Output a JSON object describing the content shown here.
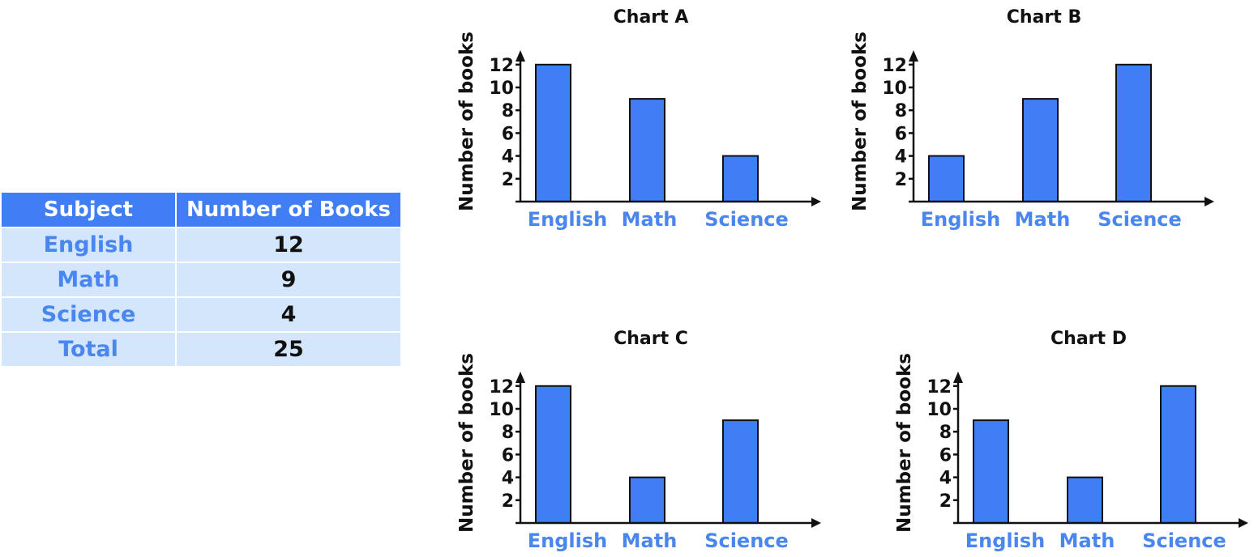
{
  "table": {
    "headers": [
      "Subject",
      "Number of Books"
    ],
    "rows": [
      [
        "English",
        "12"
      ],
      [
        "Math",
        "9"
      ],
      [
        "Science",
        "4"
      ],
      [
        "Total",
        "25"
      ]
    ]
  },
  "colors": {
    "bar": "#3f7ef4",
    "header_bg": "#3f7ef4",
    "row_bg": "#d3e6fc",
    "category_text": "#4a86f0"
  },
  "chart_data": [
    {
      "type": "bar",
      "title": "Chart A",
      "categories": [
        "English",
        "Math",
        "Science"
      ],
      "values": [
        12,
        9,
        4
      ],
      "xlabel": "",
      "ylabel": "Number of books",
      "yticks": [
        2,
        4,
        6,
        8,
        10,
        12
      ],
      "ylim": [
        0,
        13
      ],
      "grid": false
    },
    {
      "type": "bar",
      "title": "Chart B",
      "categories": [
        "English",
        "Math",
        "Science"
      ],
      "values": [
        4,
        9,
        12
      ],
      "xlabel": "",
      "ylabel": "Number of books",
      "yticks": [
        2,
        4,
        6,
        8,
        10,
        12
      ],
      "ylim": [
        0,
        13
      ],
      "grid": false
    },
    {
      "type": "bar",
      "title": "Chart C",
      "categories": [
        "English",
        "Math",
        "Science"
      ],
      "values": [
        12,
        4,
        9
      ],
      "xlabel": "",
      "ylabel": "Number of books",
      "yticks": [
        2,
        4,
        6,
        8,
        10,
        12
      ],
      "ylim": [
        0,
        13
      ],
      "grid": false
    },
    {
      "type": "bar",
      "title": "Chart D",
      "categories": [
        "English",
        "Math",
        "Science"
      ],
      "values": [
        9,
        4,
        12
      ],
      "xlabel": "",
      "ylabel": "Number of books",
      "yticks": [
        2,
        4,
        6,
        8,
        10,
        12
      ],
      "ylim": [
        0,
        13
      ],
      "grid": false
    }
  ]
}
